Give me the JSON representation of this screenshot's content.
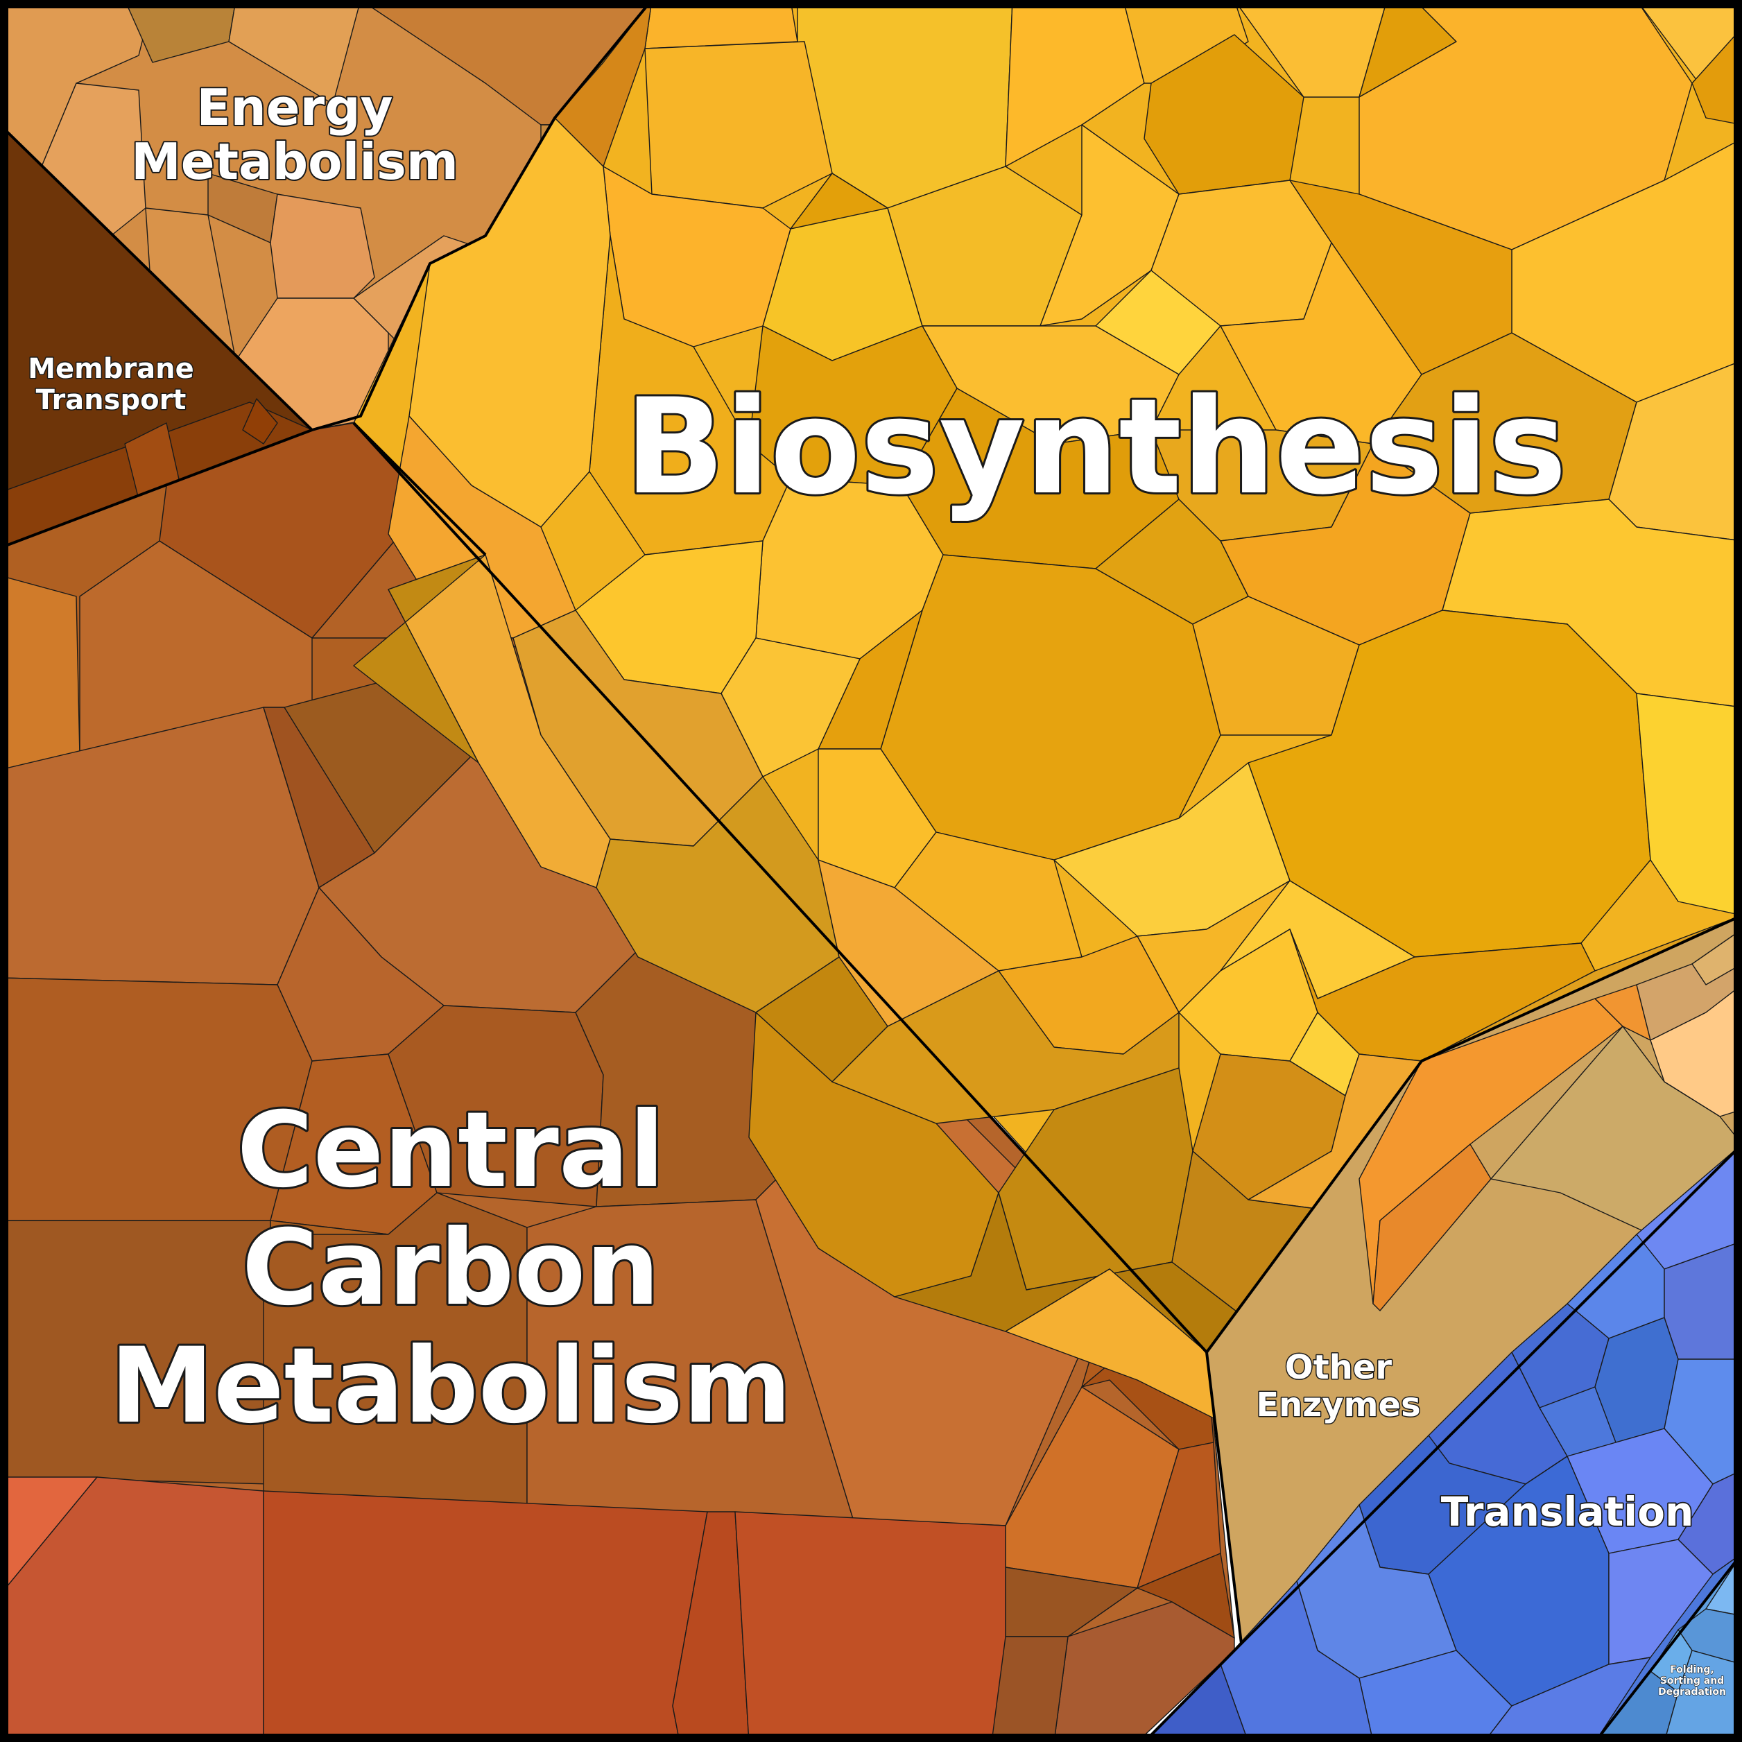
{
  "chart_data": {
    "type": "voronoi-treemap",
    "categories": [
      {
        "name": "Biosynthesis",
        "color": "#f2b320"
      },
      {
        "name": "Central Carbon Metabolism",
        "color": "#b5652b"
      },
      {
        "name": "Energy Metabolism",
        "color": "#d98b45"
      },
      {
        "name": "Membrane Transport",
        "color": "#6e3509"
      },
      {
        "name": "Other Enzymes",
        "color": "#cfa560"
      },
      {
        "name": "Translation",
        "color": "#4d78dc"
      },
      {
        "name": "Folding, Sorting and Degradation",
        "color": "#5fa0e0"
      }
    ]
  },
  "labels": {
    "biosynthesis": "Biosynthesis",
    "central_1": "Central",
    "central_2": "Carbon",
    "central_3": "Metabolism",
    "energy_1": "Energy",
    "energy_2": "Metabolism",
    "membrane_1": "Membrane",
    "membrane_2": "Transport",
    "other_1": "Other",
    "other_2": "Enzymes",
    "translation": "Translation",
    "folding_1": "Folding,",
    "folding_2": "Sorting and",
    "folding_3": "Degradation"
  }
}
